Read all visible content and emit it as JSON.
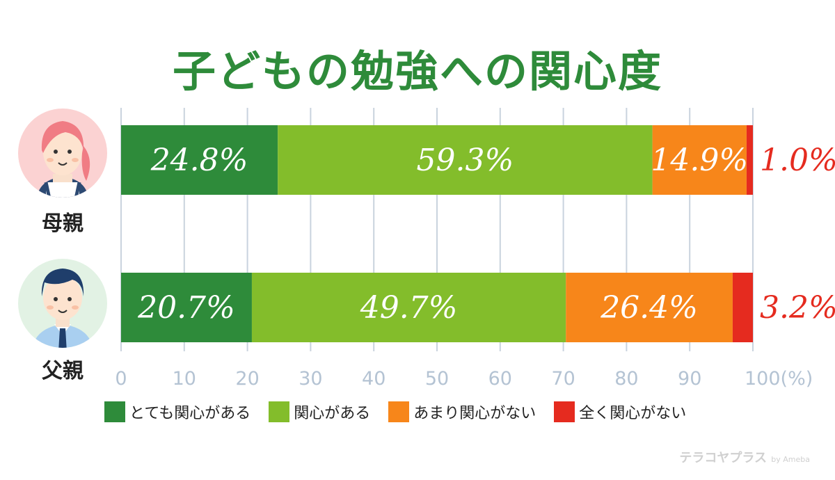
{
  "title": "子どもの勉強への関心度",
  "groups": [
    {
      "label": "母親",
      "avatar": "mother-avatar-icon"
    },
    {
      "label": "父親",
      "avatar": "father-avatar-icon"
    }
  ],
  "legend": [
    {
      "label": "とても関心がある",
      "color": "#2e8b3a"
    },
    {
      "label": "関心がある",
      "color": "#83bd2b"
    },
    {
      "label": "あまり関心がない",
      "color": "#f7861a"
    },
    {
      "label": "全く関心がない",
      "color": "#e52b1f"
    }
  ],
  "chart_data": {
    "type": "bar",
    "orientation": "horizontal-stacked",
    "categories": [
      "母親",
      "父親"
    ],
    "series": [
      {
        "name": "とても関心がある",
        "color": "#2e8b3a",
        "values": [
          24.8,
          20.7
        ],
        "labels": [
          "24.8%",
          "20.7%"
        ]
      },
      {
        "name": "関心がある",
        "color": "#83bd2b",
        "values": [
          59.3,
          49.7
        ],
        "labels": [
          "59.3%",
          "49.7%"
        ]
      },
      {
        "name": "あまり関心がない",
        "color": "#f7861a",
        "values": [
          14.9,
          26.4
        ],
        "labels": [
          "14.9%",
          "26.4%"
        ]
      },
      {
        "name": "全く関心がない",
        "color": "#e52b1f",
        "values": [
          1.0,
          3.2
        ],
        "labels": [
          "1.0%",
          "3.2%"
        ]
      }
    ],
    "xlim": [
      0,
      100
    ],
    "xticks": [
      "0",
      "10",
      "20",
      "30",
      "40",
      "50",
      "60",
      "70",
      "80",
      "90",
      "100(%)"
    ],
    "grid": true,
    "legend_position": "bottom"
  },
  "watermark": {
    "brand": "テラコヤプラス",
    "suffix": "by Ameba"
  }
}
